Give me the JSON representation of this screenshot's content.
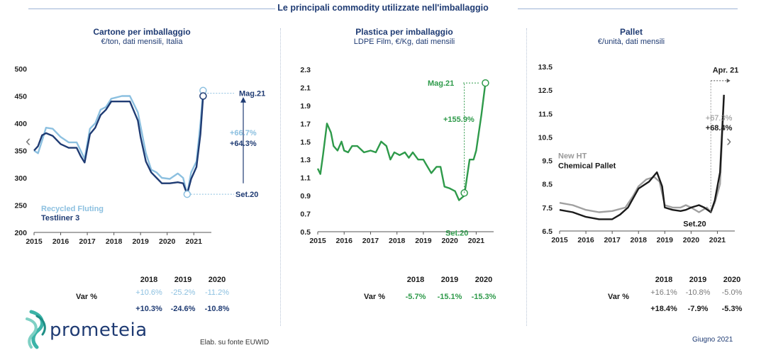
{
  "header": {
    "title": "Le principali commodity utilizzate nell'imballaggio"
  },
  "colors": {
    "navy": "#1f3b73",
    "light_blue": "#8cc0e0",
    "green": "#2e9a4a",
    "black": "#1a1a1a",
    "grey": "#a0a0a0"
  },
  "panels": [
    {
      "title": "Cartone per imballaggio",
      "subtitle": "€/ton, dati mensili, Italia"
    },
    {
      "title": "Plastica per imballaggio",
      "subtitle": "LDPE Film, €/Kg, dati mensili"
    },
    {
      "title": "Pallet",
      "subtitle": "€/unità, dati mensili"
    }
  ],
  "chart_data": [
    {
      "type": "line",
      "title": "Cartone per imballaggio",
      "subtitle": "€/ton, dati mensili, Italia",
      "xlim": [
        2015,
        2021.5
      ],
      "ylim": [
        200,
        500
      ],
      "xticks": [
        "2015",
        "2016",
        "2017",
        "2018",
        "2019",
        "2020",
        "2021"
      ],
      "yticks": [
        "200",
        "250",
        "300",
        "350",
        "400",
        "450",
        "500"
      ],
      "legend": [
        "Recycled Fluting",
        "Testliner 3"
      ],
      "legend_placement": "bottom-left",
      "series": [
        {
          "name": "Recycled Fluting",
          "color": "#8cc0e0",
          "points": [
            [
              2015,
              350
            ],
            [
              2015.15,
              345
            ],
            [
              2015.3,
              368
            ],
            [
              2015.45,
              392
            ],
            [
              2015.7,
              390
            ],
            [
              2016,
              375
            ],
            [
              2016.3,
              365
            ],
            [
              2016.6,
              365
            ],
            [
              2016.75,
              350
            ],
            [
              2016.9,
              335
            ],
            [
              2017.1,
              390
            ],
            [
              2017.3,
              400
            ],
            [
              2017.5,
              425
            ],
            [
              2017.7,
              430
            ],
            [
              2017.9,
              445
            ],
            [
              2018.3,
              450
            ],
            [
              2018.6,
              450
            ],
            [
              2018.9,
              420
            ],
            [
              2019,
              395
            ],
            [
              2019.2,
              345
            ],
            [
              2019.4,
              315
            ],
            [
              2019.6,
              310
            ],
            [
              2019.8,
              300
            ],
            [
              2020.1,
              298
            ],
            [
              2020.4,
              308
            ],
            [
              2020.6,
              300
            ],
            [
              2020.75,
              270
            ],
            [
              2020.9,
              310
            ],
            [
              2021.1,
              330
            ],
            [
              2021.25,
              400
            ],
            [
              2021.35,
              460
            ]
          ]
        },
        {
          "name": "Testliner 3",
          "color": "#1f3b73",
          "points": [
            [
              2015,
              350
            ],
            [
              2015.15,
              358
            ],
            [
              2015.3,
              378
            ],
            [
              2015.45,
              382
            ],
            [
              2015.7,
              377
            ],
            [
              2016,
              362
            ],
            [
              2016.3,
              355
            ],
            [
              2016.6,
              355
            ],
            [
              2016.75,
              340
            ],
            [
              2016.9,
              328
            ],
            [
              2017.1,
              380
            ],
            [
              2017.3,
              392
            ],
            [
              2017.5,
              415
            ],
            [
              2017.7,
              425
            ],
            [
              2017.9,
              440
            ],
            [
              2018.3,
              440
            ],
            [
              2018.6,
              440
            ],
            [
              2018.9,
              405
            ],
            [
              2019,
              375
            ],
            [
              2019.2,
              330
            ],
            [
              2019.4,
              310
            ],
            [
              2019.6,
              300
            ],
            [
              2019.8,
              290
            ],
            [
              2020.1,
              290
            ],
            [
              2020.4,
              292
            ],
            [
              2020.6,
              290
            ],
            [
              2020.75,
              270
            ],
            [
              2020.9,
              298
            ],
            [
              2021.1,
              320
            ],
            [
              2021.25,
              380
            ],
            [
              2021.35,
              450
            ]
          ]
        }
      ],
      "annotations": {
        "top_label": "Mag.21",
        "bottom_label": "Set.20",
        "pct_1": "+66.7%",
        "pct_2": "+64.3%"
      },
      "table": {
        "years": [
          "2018",
          "2019",
          "2020"
        ],
        "label": "Var %",
        "rows": [
          {
            "values": [
              "+10.6%",
              "-25.2%",
              "-11.2%"
            ],
            "color": "#8cc0e0"
          },
          {
            "values": [
              "+10.3%",
              "-24.6%",
              "-10.8%"
            ],
            "color": "#1f3b73"
          }
        ]
      }
    },
    {
      "type": "line",
      "title": "Plastica per imballaggio",
      "subtitle": "LDPE Film, €/Kg, dati mensili",
      "xlim": [
        2015,
        2021.5
      ],
      "ylim": [
        0.5,
        2.3
      ],
      "xticks": [
        "2015",
        "2016",
        "2017",
        "2018",
        "2019",
        "2020",
        "2021"
      ],
      "yticks": [
        "0.5",
        "0.7",
        "0.9",
        "1.1",
        "1.3",
        "1.5",
        "1.7",
        "1.9",
        "2.1",
        "2.3"
      ],
      "series": [
        {
          "name": "LDPE Film",
          "color": "#2e9a4a",
          "points": [
            [
              2015,
              1.2
            ],
            [
              2015.1,
              1.14
            ],
            [
              2015.2,
              1.35
            ],
            [
              2015.35,
              1.7
            ],
            [
              2015.5,
              1.6
            ],
            [
              2015.6,
              1.45
            ],
            [
              2015.75,
              1.4
            ],
            [
              2015.9,
              1.5
            ],
            [
              2016,
              1.4
            ],
            [
              2016.15,
              1.38
            ],
            [
              2016.3,
              1.45
            ],
            [
              2016.5,
              1.45
            ],
            [
              2016.75,
              1.38
            ],
            [
              2017,
              1.4
            ],
            [
              2017.2,
              1.38
            ],
            [
              2017.4,
              1.5
            ],
            [
              2017.6,
              1.45
            ],
            [
              2017.75,
              1.3
            ],
            [
              2017.9,
              1.38
            ],
            [
              2018.1,
              1.35
            ],
            [
              2018.3,
              1.38
            ],
            [
              2018.45,
              1.32
            ],
            [
              2018.6,
              1.38
            ],
            [
              2018.8,
              1.3
            ],
            [
              2019,
              1.3
            ],
            [
              2019.1,
              1.25
            ],
            [
              2019.3,
              1.15
            ],
            [
              2019.5,
              1.22
            ],
            [
              2019.65,
              1.22
            ],
            [
              2019.8,
              1.0
            ],
            [
              2020,
              0.98
            ],
            [
              2020.2,
              0.95
            ],
            [
              2020.35,
              0.85
            ],
            [
              2020.55,
              0.9
            ],
            [
              2020.75,
              1.3
            ],
            [
              2020.9,
              1.3
            ],
            [
              2021,
              1.4
            ],
            [
              2021.2,
              1.8
            ],
            [
              2021.35,
              2.15
            ]
          ]
        }
      ],
      "annotations": {
        "top_label": "Mag.21",
        "bottom_label": "Set.20",
        "pct_1": "+155.9%"
      },
      "table": {
        "years": [
          "2018",
          "2019",
          "2020"
        ],
        "label": "Var %",
        "rows": [
          {
            "values": [
              "-5.7%",
              "-15.1%",
              "-15.3%"
            ],
            "color": "#2e9a4a"
          }
        ]
      }
    },
    {
      "type": "line",
      "title": "Pallet",
      "subtitle": "€/unità, dati mensili",
      "xlim": [
        2015,
        2021.5
      ],
      "ylim": [
        6.5,
        13.5
      ],
      "xticks": [
        "2015",
        "2016",
        "2017",
        "2018",
        "2019",
        "2020",
        "2021"
      ],
      "yticks": [
        "6.5",
        "7.5",
        "8.5",
        "9.5",
        "10.5",
        "11.5",
        "12.5",
        "13.5"
      ],
      "series": [
        {
          "name": "New HT",
          "color": "#a0a0a0",
          "points": [
            [
              2015,
              7.7
            ],
            [
              2015.5,
              7.6
            ],
            [
              2016,
              7.4
            ],
            [
              2016.5,
              7.3
            ],
            [
              2017,
              7.35
            ],
            [
              2017.5,
              7.5
            ],
            [
              2017.8,
              8.0
            ],
            [
              2018,
              8.4
            ],
            [
              2018.3,
              8.7
            ],
            [
              2018.6,
              8.8
            ],
            [
              2018.8,
              8.6
            ],
            [
              2019,
              7.6
            ],
            [
              2019.3,
              7.5
            ],
            [
              2019.6,
              7.5
            ],
            [
              2019.8,
              7.6
            ],
            [
              2020,
              7.5
            ],
            [
              2020.3,
              7.3
            ],
            [
              2020.6,
              7.5
            ],
            [
              2020.75,
              7.3
            ],
            [
              2020.9,
              7.7
            ],
            [
              2021.1,
              8.5
            ],
            [
              2021.25,
              12.2
            ]
          ]
        },
        {
          "name": "Chemical Pallet",
          "color": "#1a1a1a",
          "points": [
            [
              2015,
              7.4
            ],
            [
              2015.5,
              7.3
            ],
            [
              2016,
              7.1
            ],
            [
              2016.5,
              7.0
            ],
            [
              2017,
              7.0
            ],
            [
              2017.3,
              7.2
            ],
            [
              2017.6,
              7.5
            ],
            [
              2018,
              8.3
            ],
            [
              2018.4,
              8.6
            ],
            [
              2018.7,
              9.0
            ],
            [
              2018.9,
              8.4
            ],
            [
              2019,
              7.5
            ],
            [
              2019.3,
              7.4
            ],
            [
              2019.6,
              7.35
            ],
            [
              2019.8,
              7.4
            ],
            [
              2020,
              7.5
            ],
            [
              2020.3,
              7.6
            ],
            [
              2020.5,
              7.5
            ],
            [
              2020.75,
              7.3
            ],
            [
              2020.9,
              7.8
            ],
            [
              2021.1,
              9.0
            ],
            [
              2021.25,
              12.3
            ]
          ]
        }
      ],
      "annotations": {
        "top_label": "Apr. 21",
        "bottom_label": "Set.20",
        "pct_1": "+67.3%",
        "pct_2": "+68.4%",
        "legend_1": "New HT",
        "legend_2": "Chemical Pallet"
      },
      "table": {
        "years": [
          "2018",
          "2019",
          "2020"
        ],
        "label": "Var %",
        "rows": [
          {
            "values": [
              "+16.1%",
              "-10.8%",
              "-5.0%"
            ],
            "color": "#7a7a7a"
          },
          {
            "values": [
              "+18.4%",
              "-7.9%",
              "-5.3%"
            ],
            "color": "#1a1a1a"
          }
        ]
      }
    }
  ],
  "nav": {
    "prev": "‹",
    "next": "›"
  },
  "footer": {
    "logo": "prometeia",
    "source": "Elab. su fonte EUWID",
    "date": "Giugno 2021"
  }
}
